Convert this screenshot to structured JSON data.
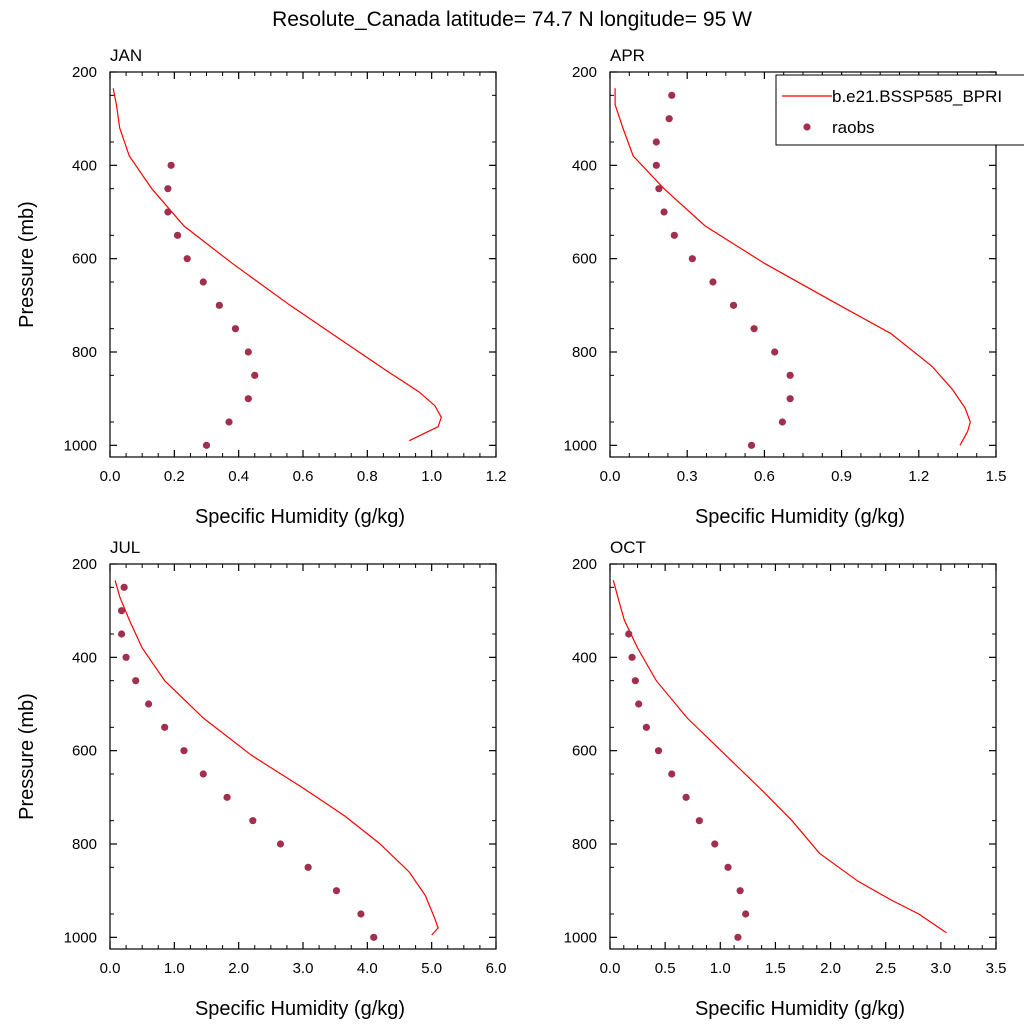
{
  "title": "Resolute_Canada  latitude= 74.7 N longitude= 95 W",
  "colors": {
    "model": "#ff0000",
    "obs": "#a0304e",
    "axis": "#000000"
  },
  "legend": {
    "model_label": "b.e21.BSSP585_BPRI",
    "obs_label": "raobs",
    "placement": "top-right"
  },
  "chart_data": [
    {
      "type": "line",
      "panel_label": "JAN",
      "xlabel": "Specific Humidity (g/kg)",
      "ylabel": "Pressure (mb)",
      "xlim": [
        0,
        1.2
      ],
      "ylim": [
        200,
        1025
      ],
      "y_reversed": true,
      "xticks": [
        "0.0",
        "0.2",
        "0.4",
        "0.6",
        "0.8",
        "1.0",
        "1.2"
      ],
      "xtick_values": [
        0,
        0.2,
        0.4,
        0.6,
        0.8,
        1.0,
        1.2
      ],
      "yticks": [
        200,
        400,
        600,
        800,
        1000
      ],
      "series": [
        {
          "kind": "line",
          "points": [
            [
              0.01,
              235
            ],
            [
              0.02,
              270
            ],
            [
              0.03,
              320
            ],
            [
              0.06,
              380
            ],
            [
              0.13,
              450
            ],
            [
              0.23,
              530
            ],
            [
              0.38,
              610
            ],
            [
              0.56,
              700
            ],
            [
              0.72,
              775
            ],
            [
              0.86,
              840
            ],
            [
              0.96,
              885
            ],
            [
              1.01,
              915
            ],
            [
              1.03,
              940
            ],
            [
              1.02,
              960
            ],
            [
              0.93,
              990
            ]
          ]
        },
        {
          "kind": "scatter",
          "points": [
            [
              0.19,
              400
            ],
            [
              0.18,
              450
            ],
            [
              0.18,
              500
            ],
            [
              0.21,
              550
            ],
            [
              0.24,
              600
            ],
            [
              0.29,
              650
            ],
            [
              0.34,
              700
            ],
            [
              0.39,
              750
            ],
            [
              0.43,
              800
            ],
            [
              0.45,
              850
            ],
            [
              0.43,
              900
            ],
            [
              0.37,
              950
            ],
            [
              0.3,
              1000
            ]
          ]
        }
      ]
    },
    {
      "type": "line",
      "panel_label": "APR",
      "xlabel": "Specific Humidity (g/kg)",
      "ylabel": "",
      "xlim": [
        0,
        1.5
      ],
      "ylim": [
        200,
        1025
      ],
      "y_reversed": true,
      "xticks": [
        "0.0",
        "0.3",
        "0.6",
        "0.9",
        "1.2",
        "1.5"
      ],
      "xtick_values": [
        0,
        0.3,
        0.6,
        0.9,
        1.2,
        1.5
      ],
      "yticks": [
        200,
        400,
        600,
        800,
        1000
      ],
      "series": [
        {
          "kind": "line",
          "points": [
            [
              0.02,
              235
            ],
            [
              0.02,
              270
            ],
            [
              0.05,
              320
            ],
            [
              0.09,
              380
            ],
            [
              0.21,
              450
            ],
            [
              0.37,
              530
            ],
            [
              0.6,
              610
            ],
            [
              0.86,
              690
            ],
            [
              1.09,
              760
            ],
            [
              1.25,
              830
            ],
            [
              1.33,
              880
            ],
            [
              1.38,
              920
            ],
            [
              1.4,
              950
            ],
            [
              1.39,
              970
            ],
            [
              1.36,
              1000
            ]
          ]
        },
        {
          "kind": "scatter",
          "points": [
            [
              0.24,
              250
            ],
            [
              0.23,
              300
            ],
            [
              0.18,
              350
            ],
            [
              0.18,
              400
            ],
            [
              0.19,
              450
            ],
            [
              0.21,
              500
            ],
            [
              0.25,
              550
            ],
            [
              0.32,
              600
            ],
            [
              0.4,
              650
            ],
            [
              0.48,
              700
            ],
            [
              0.56,
              750
            ],
            [
              0.64,
              800
            ],
            [
              0.7,
              850
            ],
            [
              0.7,
              900
            ],
            [
              0.67,
              950
            ],
            [
              0.55,
              1000
            ]
          ]
        }
      ]
    },
    {
      "type": "line",
      "panel_label": "JUL",
      "xlabel": "Specific Humidity (g/kg)",
      "ylabel": "Pressure (mb)",
      "xlim": [
        0,
        6.0
      ],
      "ylim": [
        200,
        1025
      ],
      "y_reversed": true,
      "xticks": [
        "0.0",
        "1.0",
        "2.0",
        "3.0",
        "4.0",
        "5.0",
        "6.0"
      ],
      "xtick_values": [
        0,
        1,
        2,
        3,
        4,
        5,
        6
      ],
      "yticks": [
        200,
        400,
        600,
        800,
        1000
      ],
      "series": [
        {
          "kind": "line",
          "points": [
            [
              0.08,
              235
            ],
            [
              0.15,
              270
            ],
            [
              0.3,
              320
            ],
            [
              0.5,
              380
            ],
            [
              0.85,
              450
            ],
            [
              1.45,
              530
            ],
            [
              2.2,
              610
            ],
            [
              3.0,
              680
            ],
            [
              3.65,
              740
            ],
            [
              4.2,
              800
            ],
            [
              4.65,
              860
            ],
            [
              4.9,
              910
            ],
            [
              5.05,
              960
            ],
            [
              5.1,
              980
            ],
            [
              5.0,
              995
            ]
          ]
        },
        {
          "kind": "scatter",
          "points": [
            [
              0.22,
              250
            ],
            [
              0.18,
              300
            ],
            [
              0.18,
              350
            ],
            [
              0.25,
              400
            ],
            [
              0.4,
              450
            ],
            [
              0.6,
              500
            ],
            [
              0.85,
              550
            ],
            [
              1.15,
              600
            ],
            [
              1.45,
              650
            ],
            [
              1.82,
              700
            ],
            [
              2.22,
              750
            ],
            [
              2.65,
              800
            ],
            [
              3.08,
              850
            ],
            [
              3.52,
              900
            ],
            [
              3.9,
              950
            ],
            [
              4.1,
              1000
            ]
          ]
        }
      ]
    },
    {
      "type": "line",
      "panel_label": "OCT",
      "xlabel": "Specific Humidity (g/kg)",
      "ylabel": "",
      "xlim": [
        0,
        3.5
      ],
      "ylim": [
        200,
        1025
      ],
      "y_reversed": true,
      "xticks": [
        "0.0",
        "0.5",
        "1.0",
        "1.5",
        "2.0",
        "2.5",
        "3.0",
        "3.5"
      ],
      "xtick_values": [
        0,
        0.5,
        1.0,
        1.5,
        2.0,
        2.5,
        3.0,
        3.5
      ],
      "yticks": [
        200,
        400,
        600,
        800,
        1000
      ],
      "series": [
        {
          "kind": "line",
          "points": [
            [
              0.03,
              235
            ],
            [
              0.07,
              270
            ],
            [
              0.13,
              320
            ],
            [
              0.25,
              380
            ],
            [
              0.42,
              450
            ],
            [
              0.7,
              530
            ],
            [
              1.05,
              610
            ],
            [
              1.4,
              690
            ],
            [
              1.65,
              750
            ],
            [
              1.9,
              820
            ],
            [
              2.25,
              880
            ],
            [
              2.55,
              920
            ],
            [
              2.8,
              950
            ],
            [
              3.05,
              990
            ]
          ]
        },
        {
          "kind": "scatter",
          "points": [
            [
              0.17,
              350
            ],
            [
              0.2,
              400
            ],
            [
              0.23,
              450
            ],
            [
              0.26,
              500
            ],
            [
              0.33,
              550
            ],
            [
              0.44,
              600
            ],
            [
              0.56,
              650
            ],
            [
              0.69,
              700
            ],
            [
              0.81,
              750
            ],
            [
              0.95,
              800
            ],
            [
              1.07,
              850
            ],
            [
              1.18,
              900
            ],
            [
              1.23,
              950
            ],
            [
              1.16,
              1000
            ]
          ]
        }
      ]
    }
  ]
}
